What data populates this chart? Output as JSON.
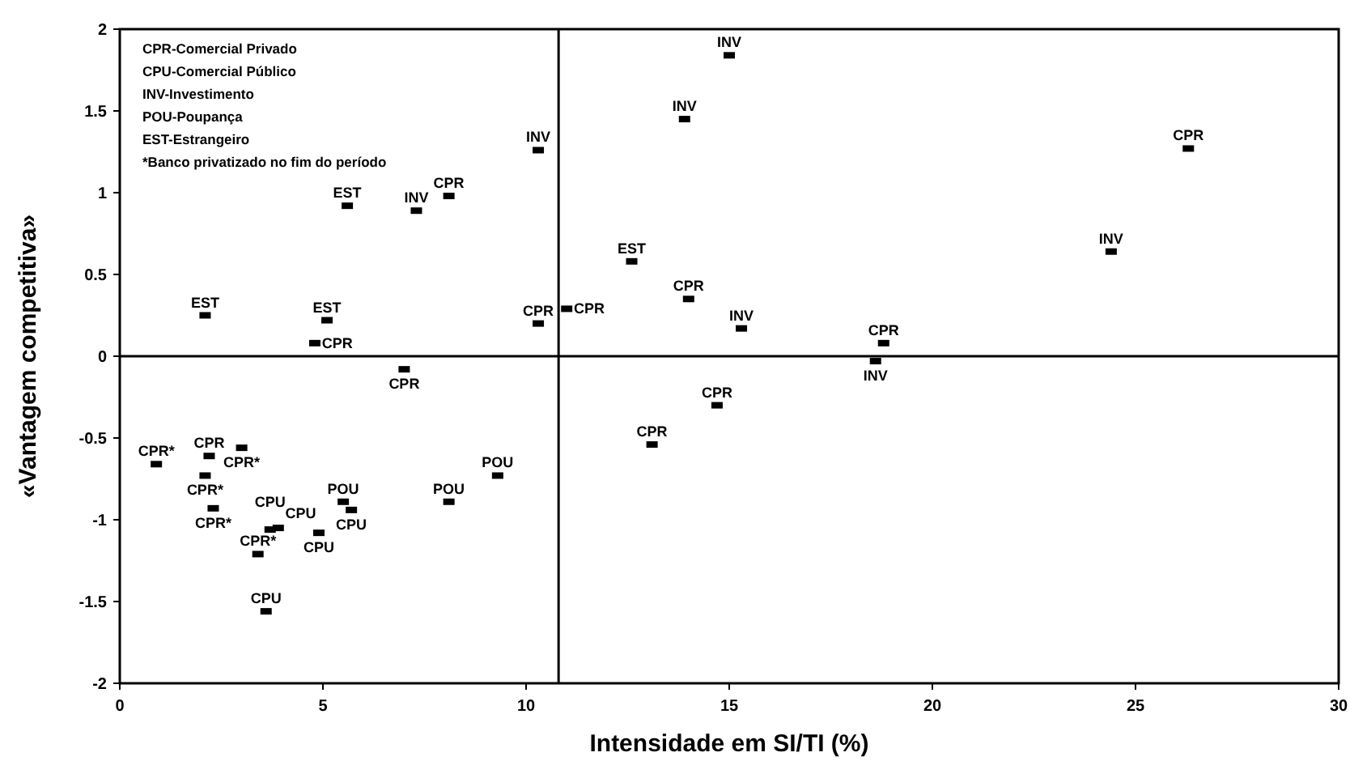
{
  "chart_data": {
    "type": "scatter",
    "xlabel": "Intensidade em SI/TI (%)",
    "ylabel": "«Vantagem competitiva»",
    "xlim": [
      0,
      30
    ],
    "xticks": [
      0,
      5,
      10,
      15,
      20,
      25,
      30
    ],
    "ylim": [
      -2,
      2
    ],
    "yticks": [
      -2,
      -1.5,
      -1,
      -0.5,
      0,
      0.5,
      1,
      1.5,
      2
    ],
    "grid": false,
    "marker": "square",
    "ref_lines": [
      {
        "axis": "x",
        "value": 10.8
      },
      {
        "axis": "y",
        "value": 0
      }
    ],
    "annotations": [
      "CPR-Comercial Privado",
      "CPU-Comercial Público",
      "INV-Investimento",
      "POU-Poupança",
      "EST-Estrangeiro",
      "*Banco privatizado no fim do período"
    ],
    "series": [
      {
        "name": "CPR",
        "color": "#000000",
        "x": [
          8.1,
          4.8,
          7.0,
          10.3,
          11.0,
          26.3,
          14.0,
          18.8,
          14.7,
          13.1,
          2.2
        ],
        "values": [
          0.98,
          0.08,
          -0.08,
          0.2,
          0.29,
          1.27,
          0.35,
          0.08,
          -0.3,
          -0.54,
          -0.61
        ]
      },
      {
        "name": "CPR*",
        "color": "#000000",
        "x": [
          0.9,
          2.1,
          3.0,
          2.3,
          3.4
        ],
        "values": [
          -0.66,
          -0.73,
          -0.56,
          -0.93,
          -1.21
        ]
      },
      {
        "name": "CPU",
        "color": "#000000",
        "x": [
          3.6,
          3.7,
          3.9,
          4.9,
          5.7
        ],
        "values": [
          -1.56,
          -1.06,
          -1.05,
          -1.08,
          -0.94
        ]
      },
      {
        "name": "INV",
        "color": "#000000",
        "x": [
          10.3,
          7.3,
          15.0,
          13.9,
          24.4,
          15.3,
          18.6
        ],
        "values": [
          1.26,
          0.89,
          1.84,
          1.45,
          0.64,
          0.17,
          -0.03
        ]
      },
      {
        "name": "POU",
        "color": "#000000",
        "x": [
          5.5,
          8.1,
          9.3
        ],
        "values": [
          -0.89,
          -0.89,
          -0.73
        ]
      },
      {
        "name": "EST",
        "color": "#000000",
        "x": [
          2.1,
          5.6,
          5.1,
          12.6
        ],
        "values": [
          0.25,
          0.92,
          0.22,
          0.58
        ]
      }
    ]
  }
}
